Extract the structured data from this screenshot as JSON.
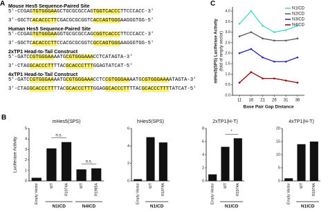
{
  "panel_labels": [
    "A",
    "B",
    "C"
  ],
  "panel_a": {
    "constructs": [
      {
        "title": "Mouse Hes5 Sequence-Paired Site",
        "strands": [
          [
            "5'-CCGAG",
            "TGTGGGAA",
            "GCTGCGCGCCAG",
            "TGGTCACCC",
            "TTCCCACC-3'"
          ],
          [
            "3'-GGCTC",
            "ACACCCTT",
            "CGACGCGCGGTC",
            "ACCAGTGGG",
            "AAGGGTGG-5'"
          ]
        ]
      },
      {
        "title": "Human Hes5 Sequence-Paired Site",
        "strands": [
          [
            "5'-CCGAG",
            "TGTGGGAA",
            "GGTGCGCGCCAG",
            "CGGTCACCC",
            "TTCCCACC-3'"
          ],
          [
            "3'-GGCTC",
            "ACACCCTT",
            "CCACGCGCGGTC",
            "GCCAGTGGG",
            "AAGGGTGG-5'"
          ]
        ]
      },
      {
        "title": "2xTP1 Head-to-Tail Construct",
        "strands": [
          [
            "5'-GATC",
            "CGTGGGAA",
            "AATG",
            "CGTGGGAAA",
            "CCTCATAGTA-3'"
          ],
          [
            "3'-CTAG",
            "GCACCCTT",
            "TTAC",
            "GCACCCTTT",
            "GGAGTATCAT-5'"
          ]
        ]
      },
      {
        "title": "4xTP1 Head-to-Tail Construct",
        "strands": [
          [
            "5'-GATC",
            "CGTGGGAA",
            "AATG",
            "CGTGGGAAA",
            "CCTC",
            "CGTGGGAA",
            "AATG",
            "CGTGGGAAA",
            "ATAGTA-3'"
          ],
          [
            "3'-CTAG",
            "GCACCCTT",
            "TTAC",
            "GCACCCTTT",
            "GGAG",
            "GCACCCTT",
            "TTAC",
            "GCACCCTTT",
            "TATCAT-5'"
          ]
        ]
      }
    ]
  },
  "chart_data": [
    {
      "type": "bar",
      "title": "mHes5(SPS)",
      "ylabel": "Luciferase Activity",
      "color": "#111111",
      "categories": [
        "Empty Vector",
        "WT",
        "R1974A",
        "WT",
        "R1985A"
      ],
      "values": [
        0.3,
        3.1,
        3.7,
        1.1,
        1.2
      ],
      "ylim": [
        0,
        5
      ],
      "yticks": [
        0,
        1,
        2,
        3,
        4,
        5
      ],
      "groups": [
        {
          "name": "N1ICD",
          "members": [
            1,
            2
          ]
        },
        {
          "name": "N4ICD",
          "members": [
            3,
            4
          ]
        }
      ],
      "annotations": [
        {
          "text": "n.s.",
          "between": [
            1,
            2
          ]
        },
        {
          "text": "n.s.",
          "between": [
            3,
            4
          ]
        }
      ]
    },
    {
      "type": "bar",
      "title": "hHes5(SPS)",
      "color": "#111111",
      "categories": [
        "Empty Vector",
        "WT",
        "R1974A"
      ],
      "values": [
        0.2,
        5.0,
        4.4
      ],
      "ylim": [
        0,
        6
      ],
      "yticks": [
        0,
        2,
        4,
        6
      ],
      "groups": [
        {
          "name": "N1ICD",
          "members": [
            1,
            2
          ]
        }
      ]
    },
    {
      "type": "bar",
      "title": "2xTP1(H-T)",
      "color": "#111111",
      "categories": [
        "Empty Vector",
        "WT",
        "R1974A"
      ],
      "values": [
        1.0,
        5.2,
        6.5
      ],
      "ylim": [
        0,
        8
      ],
      "yticks": [
        0,
        2,
        4,
        6,
        8
      ],
      "groups": [
        {
          "name": "N1ICD",
          "members": [
            1,
            2
          ]
        }
      ],
      "annotations": [
        {
          "text": "*",
          "between": [
            1,
            2
          ]
        }
      ]
    },
    {
      "type": "bar",
      "title": "4xTP1(H-T)",
      "color": "#111111",
      "categories": [
        "Empty Vector",
        "WT",
        "R1974A"
      ],
      "values": [
        1.0,
        14.0,
        15.0
      ],
      "ylim": [
        0,
        20
      ],
      "yticks": [
        0,
        5,
        10,
        15,
        20
      ],
      "groups": [
        {
          "name": "N1ICD",
          "members": [
            1,
            2
          ]
        }
      ]
    },
    {
      "type": "line",
      "ylabel": "mHes5(SPS) Luciferase Activity",
      "ylabel2": "(fold of empty vector)",
      "xlabel": "Base Pair Gap Distance",
      "legend": "upper right",
      "x": [
        11,
        16,
        21,
        26,
        31,
        36
      ],
      "xlim": [
        8,
        39
      ],
      "xticks": [
        11,
        16,
        21,
        26,
        31,
        36
      ],
      "ylim": [
        0,
        4.2
      ],
      "yticks": [
        {
          "value": 0,
          "label": "0.0"
        },
        {
          "value": 0.5,
          "label": "0.5"
        },
        {
          "value": 1,
          "label": "1.0"
        },
        {
          "value": 1.5,
          "label": "1.5"
        },
        {
          "value": 2,
          "label": "2.0"
        },
        {
          "value": 2.5,
          "label": "2.5"
        },
        {
          "value": 3,
          "label": "3.0"
        },
        {
          "value": 3.5,
          "label": "3.5"
        },
        {
          "value": 4,
          "label": "4.0"
        }
      ],
      "series": [
        {
          "name": "N1ICD",
          "color": "#3fd9c0",
          "values": [
            3.4,
            4.0,
            3.3,
            3.0,
            3.1,
            3.3
          ]
        },
        {
          "name": "N2ICD",
          "color": "#555555",
          "values": [
            2.8,
            3.0,
            2.7,
            2.6,
            2.6,
            2.7
          ]
        },
        {
          "name": "N3ICD",
          "color": "#2222aa",
          "values": [
            2.0,
            2.2,
            1.8,
            1.6,
            1.6,
            1.8
          ]
        },
        {
          "name": "N4ICD",
          "color": "#8b0000",
          "values": [
            0.6,
            1.1,
            0.8,
            0.8,
            0.7,
            0.6
          ]
        }
      ]
    }
  ]
}
